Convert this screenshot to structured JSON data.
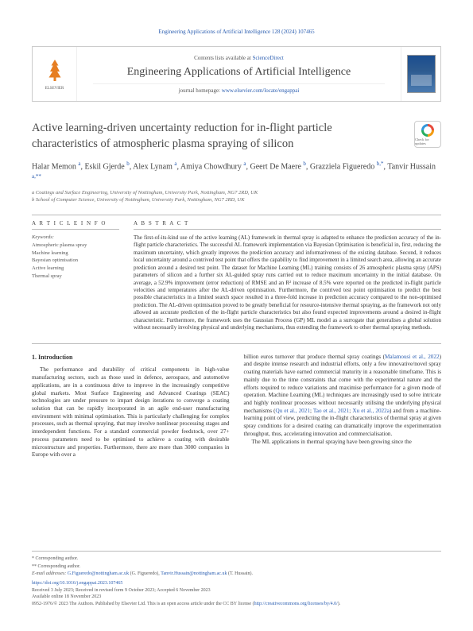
{
  "header_ref": "Engineering Applications of Artificial Intelligence 128 (2024) 107465",
  "journal_header": {
    "contents_text": "Contents lists available at",
    "contents_link": "ScienceDirect",
    "journal_name": "Engineering Applications of Artificial Intelligence",
    "homepage_label": "journal homepage:",
    "homepage_url": "www.elsevier.com/locate/engappai",
    "publisher": "ELSEVIER"
  },
  "check_updates_label": "Check for updates",
  "title": "Active learning-driven uncertainty reduction for in-flight particle characteristics of atmospheric plasma spraying of silicon",
  "authors_html": "Halar Memon <sup>a</sup>, Eskil Gjerde <sup>b</sup>, Alex Lynam <sup>a</sup>, Amiya Chowdhury <sup>a</sup>, Geert De Maere <sup>b</sup>, Grazziela Figueredo <sup>b,*</sup>, Tanvir Hussain <sup>a,**</sup>",
  "affiliations": {
    "a": "a Coatings and Surface Engineering, University of Nottingham, University Park, Nottingham, NG7 2RD, UK",
    "b": "b School of Computer Science, University of Nottingham, University Park, Nottingham, NG7 2RD, UK"
  },
  "article_info_heading": "A R T I C L E   I N F O",
  "keywords_label": "Keywords:",
  "keywords": [
    "Atmospheric plasma spray",
    "Machine learning",
    "Bayesian optimisation",
    "Active learning",
    "Thermal spray"
  ],
  "abstract_heading": "A B S T R A C T",
  "abstract_text": "The first-of-its-kind use of the active learning (AL) framework in thermal spray is adapted to enhance the prediction accuracy of the in-flight particle characteristics. The successful AL framework implementation via Bayesian Optimisation is beneficial in, first, reducing the maximum uncertainty, which greatly improves the prediction accuracy and informativeness of the existing database. Second, it reduces local uncertainty around a contrived test point that offers the capability to find improvement in a limited search area, allowing an accurate prediction around a desired test point. The dataset for Machine Learning (ML) training consists of 26 atmospheric plasma spray (APS) parameters of silicon and a further six AL-guided spray runs carried out to reduce maximum uncertainty in the initial database. On average, a 52.9% improvement (error reduction) of RMSE and an R² increase of 8.5% were reported on the predicted in-flight particle velocities and temperatures after the AL-driven optimisation. Furthermore, the contrived test point optimisation to predict the best possible characteristics in a limited search space resulted in a three-fold increase in prediction accuracy compared to the non-optimised prediction. The AL-driven optimisation proved to be greatly beneficial for resource-intensive thermal spraying, as the framework not only allowed an accurate prediction of the in-flight particle characteristics but also found expected improvements around a desired in-flight characteristic. Furthermore, the framework uses the Gaussian Process (GP) ML model as a surrogate that generalises a global solution without necessarily involving physical and underlying mechanisms, thus extending the framework to other thermal spraying methods.",
  "intro": {
    "heading": "1. Introduction",
    "col1": "The performance and durability of critical components in high-value manufacturing sectors, such as those used in defence, aerospace, and automotive applications, are in a continuous drive to improve in the increasingly competitive global markets. Most Surface Engineering and Advanced Coatings (SEAC) technologies are under pressure to impart design iterations to converge a coating solution that can be rapidly incorporated in an agile end-user manufacturing environment with minimal optimisation. This is particularly challenging for complex processes, such as thermal spraying, that may involve nonlinear processing stages and interdependent functions. For a standard commercial powder feedstock, over 27+ process parameters need to be optimised to achieve a coating with desirable microstructure and properties. Furthermore, there are more than 3000 companies in Europe with over a",
    "col2_a": "billion euros turnover that produce thermal spray coatings (",
    "col2_cite1": "Malamousi et al., 2022",
    "col2_b": ") and despite intense research and industrial efforts, only a few innovative/novel spray coating materials have earned commercial maturity in a reasonable timeframe. This is mainly due to the time constraints that come with the experimental nature and the efforts required to reduce variations and maximise performance for a given mode of operation. Machine Learning (ML) techniques are increasingly used to solve intricate and highly nonlinear processes without necessarily utilising the underlying physical mechanisms (",
    "col2_cite2": "Qu et al., 2021",
    "col2_c": "; ",
    "col2_cite3": "Tao et al., 2021",
    "col2_d": "; ",
    "col2_cite4": "Xu et al., 2022a",
    "col2_e": ") and from a machine-learning point of view, predicting the in-flight characteristics of thermal spray at given spray conditions for a desired coating can dramatically improve the experimentation throughput, thus, accelerating innovation and commercialisation.",
    "col2_p2": "The ML applications in thermal spraying have been growing since the"
  },
  "footer": {
    "corr1": "* Corresponding author.",
    "corr2": "** Corresponding author.",
    "email_label": "E-mail addresses:",
    "email1": "G.Figueredo@nottingham.ac.uk",
    "email1_name": "(G. Figueredo),",
    "email2": "Tanvir.Hussain@nottingham.ac.uk",
    "email2_name": "(T. Hussain).",
    "doi": "https://doi.org/10.1016/j.engappai.2023.107465",
    "received": "Received 3 July 2023; Received in revised form 9 October 2023; Accepted 6 November 2023",
    "available": "Available online 18 November 2023",
    "copyright_a": "0952-1976/© 2023 The Authors. Published by Elsevier Ltd. This is an open access article under the CC BY license (",
    "copyright_link": "http://creativecommons.org/licenses/by/4.0/",
    "copyright_b": ")."
  }
}
